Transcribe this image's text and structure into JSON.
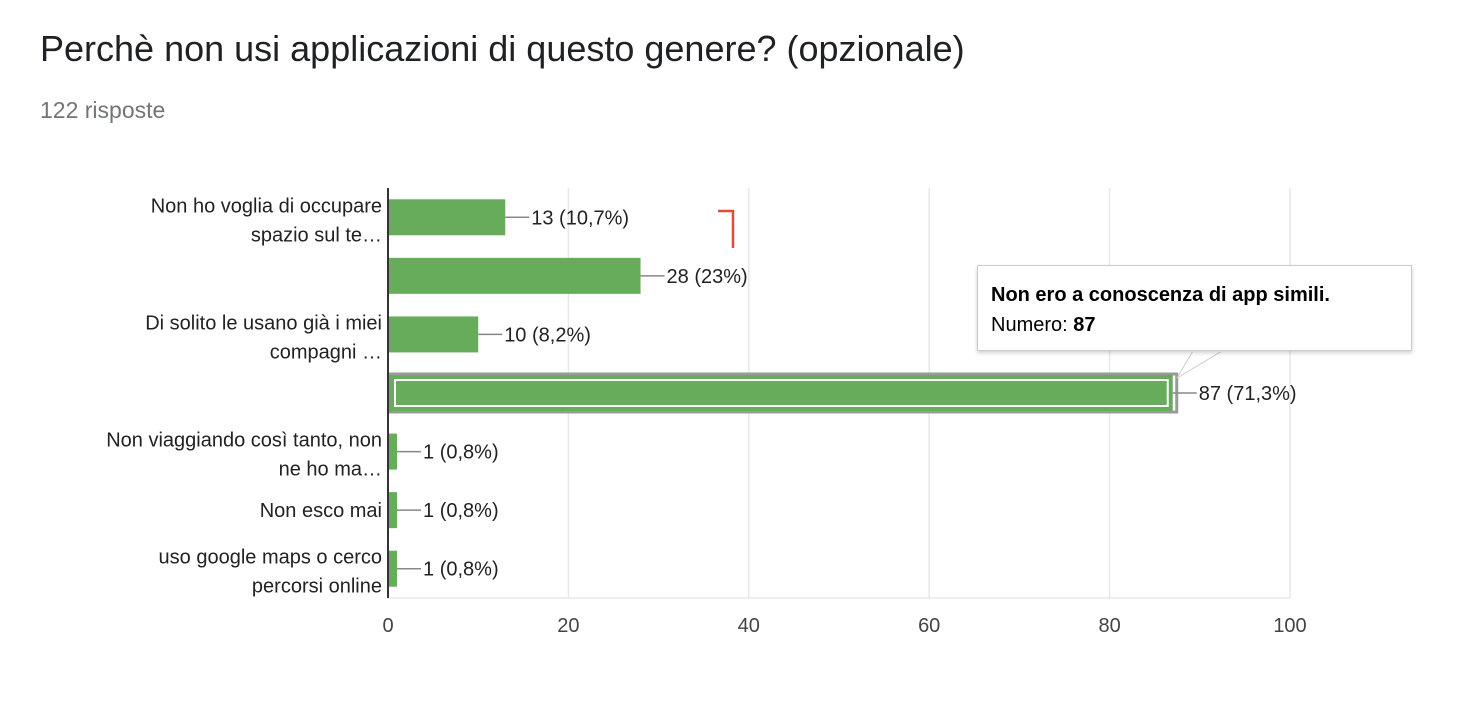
{
  "page": {
    "title": "Perchè non usi applicazioni di questo genere? (opzionale)",
    "subtitle": "122 risposte"
  },
  "colors": {
    "bar": "#67ac5b",
    "grid": "#e8e8e8",
    "axis": "#333333",
    "highlight_border": "#9a9a9a",
    "flag": "#e04b3c"
  },
  "tooltip": {
    "title": "Non ero a conoscenza di app simili.",
    "label": "Numero:",
    "value": "87"
  },
  "chart_data": {
    "type": "bar",
    "orientation": "horizontal",
    "categories": [
      [
        "Non ho voglia di occupare",
        "spazio sul te…"
      ],
      [],
      [
        "Di solito le usano già i miei",
        "compagni …"
      ],
      [],
      [
        "Non viaggiando così tanto, non",
        "ne ho ma…"
      ],
      [
        "Non esco mai"
      ],
      [
        "uso google maps o cerco",
        "percorsi online"
      ]
    ],
    "values": [
      13,
      28,
      10,
      87,
      1,
      1,
      1
    ],
    "data_labels": [
      "13 (10,7%)",
      "28 (23%)",
      "10 (8,2%)",
      "87 (71,3%)",
      "1 (0,8%)",
      "1 (0,8%)",
      "1 (0,8%)"
    ],
    "highlighted_index": 3,
    "xlim": [
      0,
      100
    ],
    "xticks": [
      0,
      20,
      40,
      60,
      80,
      100
    ],
    "grid": true
  }
}
